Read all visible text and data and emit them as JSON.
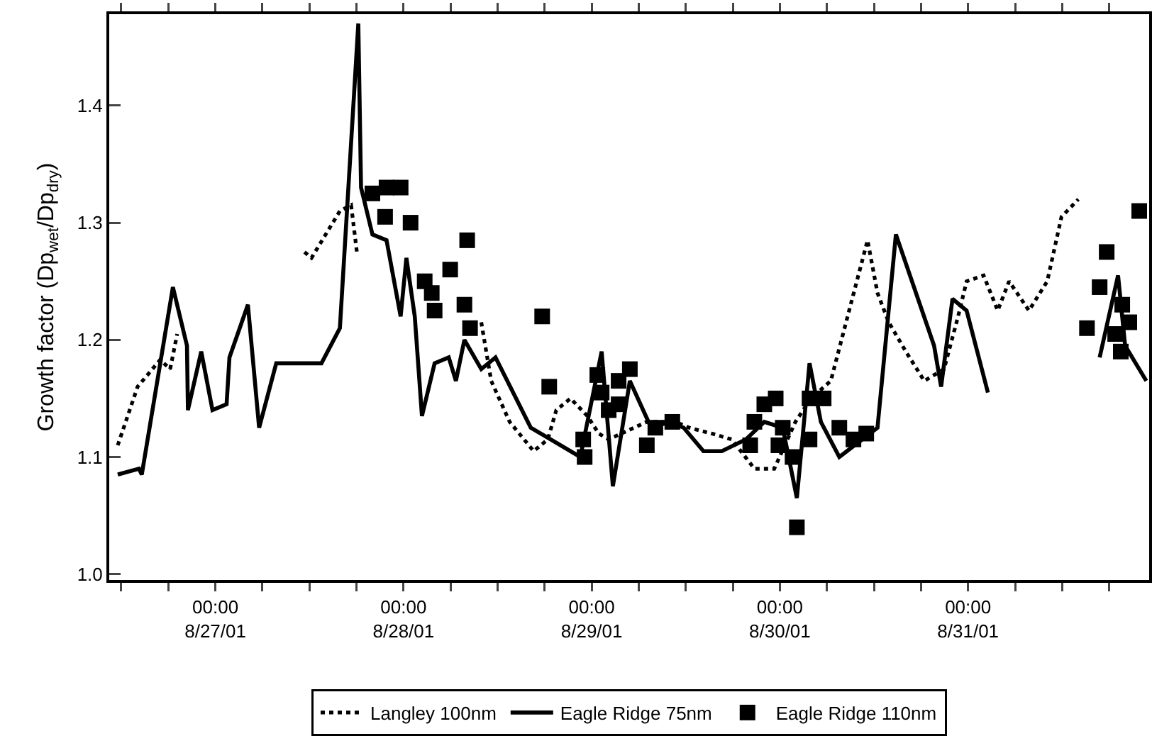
{
  "chart_data": {
    "type": "line",
    "ylabel": "Growth factor (Dp$_{wet}$/Dp$_{dry}$)",
    "xlim": [
      "--08-26T10:28",
      "--08-31T23:06"
    ],
    "ylim": [
      0.995,
      1.478
    ],
    "yticks": [
      {
        "value": 1.0,
        "label": "1.0"
      },
      1.1,
      1.2,
      1.3,
      1.4
    ],
    "xticks": [
      {
        "value": "--08-26T12:00",
        "label": null
      },
      {
        "value": "--08-26T18:00",
        "label": null
      },
      {
        "value": "--08-27T00:00",
        "label": "00:00\n8/27/01"
      },
      {
        "value": "--08-27T06:00",
        "label": null
      },
      {
        "value": "--08-27T12:00",
        "label": null
      },
      {
        "value": "--08-27T18:00",
        "label": null
      },
      {
        "value": "--08-28T00:00",
        "label": "00:00\n8/28/01"
      },
      {
        "value": "--08-28T06:00",
        "label": null
      },
      {
        "value": "--08-28T12:00",
        "label": null
      },
      {
        "value": "--08-28T18:00",
        "label": null
      },
      {
        "value": "--08-29T00:00",
        "label": "00:00\n8/29/01"
      },
      {
        "value": "--08-29T06:00",
        "label": null
      },
      {
        "value": "--08-29T12:00",
        "label": null
      },
      {
        "value": "--08-29T18:00",
        "label": null
      },
      {
        "value": "--08-30T00:00",
        "label": "00:00\n8/30/01"
      },
      {
        "value": "--08-30T06:00",
        "label": null
      },
      {
        "value": "--08-30T12:00",
        "label": null
      },
      {
        "value": "--08-30T18:00",
        "label": null
      },
      {
        "value": "--08-31T00:00",
        "label": "00:00\n8/31/01"
      },
      {
        "value": "--08-31T06:00",
        "label": null
      },
      {
        "value": "--08-31T12:00",
        "label": null
      },
      {
        "value": "--08-31T18:00",
        "label": null
      }
    ],
    "grid": false,
    "legend": "bottom",
    "series": [
      {
        "name": "Langley 100nm",
        "color": "#000000",
        "line_style": "dotted",
        "x": [
          "--08-26T11:33",
          "--08-26T14:05",
          "--08-26T16:58",
          "--08-26T18:14",
          "--08-26T19:08",
          "--08-27T03:00",
          "--08-27T11:22",
          "--08-27T12:16",
          "--08-27T15:53",
          "--08-27T17:19",
          "--08-27T18:03",
          "--08-28T03:00",
          "--08-28T09:55",
          "--08-28T11:11",
          "--08-28T13:32",
          "--08-28T16:36",
          "--08-28T18:24",
          "--08-28T19:29",
          "--08-28T21:18",
          "--08-28T23:27",
          "--08-29T00:54",
          "--08-29T02:10",
          "--08-29T07:02",
          "--08-29T10:39",
          "--08-29T12:27",
          "--08-29T15:20",
          "--08-29T17:52",
          "--08-29T20:45",
          "--08-29T23:17",
          "--08-30T01:59",
          "--08-30T03:58",
          "--08-30T06:30",
          "--08-30T08:50",
          "--08-30T11:11",
          "--08-30T12:27",
          "--08-30T13:53",
          "--08-30T16:04",
          "--08-30T18:25",
          "--08-30T20:56",
          "--08-30T22:44",
          "--08-30T23:49",
          "--08-31T01:59",
          "--08-31T03:47",
          "--08-31T05:14",
          "--08-31T07:46",
          "--08-31T10:06",
          "--08-31T11:55",
          "--08-31T14:04"
        ],
        "values": [
          1.11,
          1.16,
          1.183,
          1.175,
          1.205,
          null,
          1.275,
          1.27,
          1.31,
          1.315,
          1.275,
          null,
          1.215,
          1.165,
          1.13,
          1.105,
          1.115,
          1.14,
          1.15,
          1.135,
          1.12,
          1.115,
          1.13,
          1.13,
          1.125,
          1.12,
          1.115,
          1.09,
          1.09,
          1.13,
          1.15,
          1.165,
          1.225,
          1.285,
          1.24,
          1.215,
          1.19,
          1.165,
          1.175,
          1.22,
          1.25,
          1.255,
          1.225,
          1.25,
          1.225,
          1.25,
          1.305,
          1.32
        ]
      },
      {
        "name": "Eagle Ridge 75nm",
        "color": "#000000",
        "line_style": "solid",
        "x": [
          "--08-26T11:33",
          "--08-26T14:15",
          "--08-26T14:37",
          "--08-26T18:35",
          "--08-26T20:23",
          "--08-26T20:30",
          "--08-26T22:12",
          "--08-26T23:38",
          "--08-27T01:26",
          "--08-27T01:48",
          "--08-27T04:09",
          "--08-27T05:35",
          "--08-27T07:46",
          "--08-27T13:32",
          "--08-27T15:53",
          "--08-27T18:14",
          "--08-27T18:35",
          "--08-27T20:02",
          "--08-27T21:50",
          "--08-27T23:38",
          "--08-28T00:22",
          "--08-28T01:26",
          "--08-28T02:21",
          "--08-28T03:58",
          "--08-28T05:46",
          "--08-28T06:41",
          "--08-28T07:46",
          "--08-28T09:55",
          "--08-28T11:44",
          "--08-28T16:14",
          "--08-28T22:33",
          "--08-29T01:16",
          "--08-29T02:42",
          "--08-29T04:52",
          "--08-29T07:35",
          "--08-29T09:55",
          "--08-29T11:44",
          "--08-29T14:15",
          "--08-29T16:36",
          "--08-29T19:40",
          "--08-29T22:01",
          "--08-30T00:22",
          "--08-30T02:10",
          "--08-30T03:47",
          "--08-30T05:14",
          "--08-30T07:35",
          "--08-30T12:27",
          "--08-30T14:48",
          "--08-30T19:40",
          "--08-30T20:34",
          "--08-30T22:01",
          "--08-30T23:49",
          "--08-31T02:32",
          "--08-31T09:00",
          "--08-31T16:47",
          "--08-31T19:08",
          "--08-31T20:02",
          "--08-31T22:44"
        ],
        "values": [
          1.085,
          1.09,
          1.085,
          1.245,
          1.195,
          1.14,
          1.19,
          1.14,
          1.145,
          1.185,
          1.23,
          1.125,
          1.18,
          1.18,
          1.21,
          1.47,
          1.33,
          1.29,
          1.285,
          1.22,
          1.27,
          1.22,
          1.135,
          1.18,
          1.185,
          1.165,
          1.2,
          1.175,
          1.185,
          1.125,
          1.1,
          1.19,
          1.075,
          1.165,
          1.125,
          1.13,
          1.125,
          1.105,
          1.105,
          1.115,
          1.13,
          1.125,
          1.065,
          1.18,
          1.13,
          1.1,
          1.125,
          1.29,
          1.195,
          1.16,
          1.235,
          1.225,
          1.155,
          null,
          1.185,
          1.255,
          1.195,
          1.165
        ]
      },
      {
        "type": "scatter",
        "name": "Eagle Ridge 110nm",
        "color": "#000000",
        "marker": "square",
        "x": [
          "--08-27T20:02",
          "--08-27T21:50",
          "--08-27T23:38",
          "--08-27T21:39",
          "--08-28T00:54",
          "--08-28T03:36",
          "--08-28T02:42",
          "--08-28T03:58",
          "--08-28T05:57",
          "--08-28T08:07",
          "--08-28T07:46",
          "--08-28T08:29",
          "--08-28T17:41",
          "--08-28T18:35",
          "--08-28T22:55",
          "--08-28T23:06",
          "--08-29T00:43",
          "--08-29T01:16",
          "--08-29T02:10",
          "--08-29T03:26",
          "--08-29T04:52",
          "--08-29T03:26",
          "--08-29T07:02",
          "--08-29T08:07",
          "--08-29T10:17",
          "--08-29T20:13",
          "--08-29T20:45",
          "--08-29T22:01",
          "--08-29T23:28",
          "--08-30T00:22",
          "--08-29T23:49",
          "--08-30T01:37",
          "--08-30T02:10",
          "--08-30T03:47",
          "--08-30T05:35",
          "--08-30T03:47",
          "--08-30T07:35",
          "--08-30T09:23",
          "--08-30T11:01",
          "--08-31T15:10",
          "--08-31T16:47",
          "--08-31T17:41",
          "--08-31T18:46",
          "--08-31T19:40",
          "--08-31T20:34",
          "--08-31T19:29",
          "--08-31T21:50"
        ],
        "values": [
          1.325,
          1.33,
          1.33,
          1.305,
          1.3,
          1.24,
          1.25,
          1.225,
          1.26,
          1.285,
          1.23,
          1.21,
          1.22,
          1.16,
          1.115,
          1.1,
          1.17,
          1.155,
          1.14,
          1.165,
          1.175,
          1.145,
          1.11,
          1.125,
          1.13,
          1.11,
          1.13,
          1.145,
          1.15,
          1.125,
          1.11,
          1.1,
          1.04,
          1.15,
          1.15,
          1.115,
          1.125,
          1.115,
          1.12,
          1.21,
          1.245,
          1.275,
          1.205,
          1.23,
          1.215,
          1.19,
          1.31
        ]
      }
    ]
  }
}
